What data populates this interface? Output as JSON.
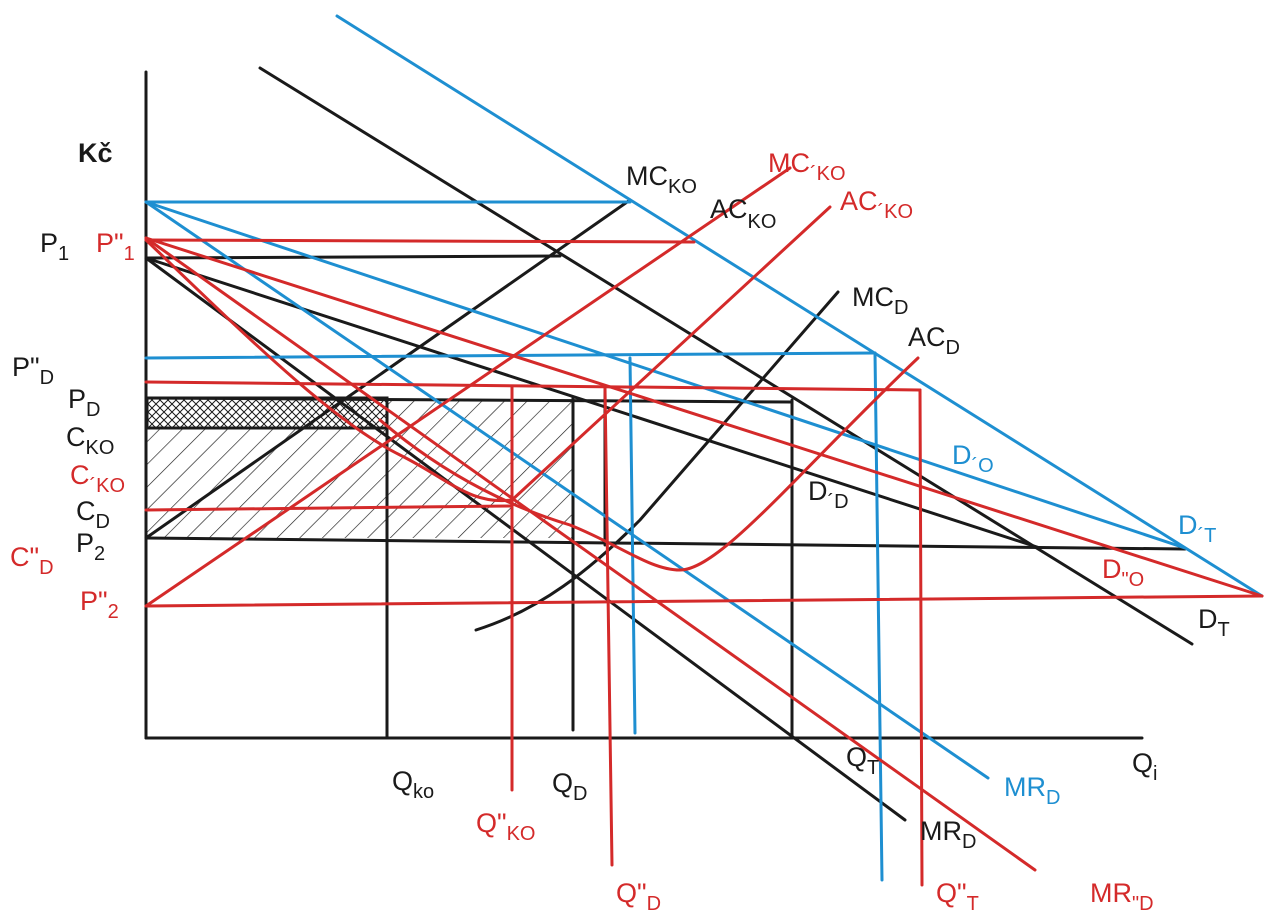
{
  "colors": {
    "black": "#1a1a1a",
    "red": "#d42a2a",
    "blue": "#1e8fd1"
  },
  "axes": {
    "y_label": "Kč",
    "x_label": {
      "main": "Q",
      "sub": "i"
    }
  },
  "curves": {
    "mc_ko": {
      "main": "MC",
      "sub": "KO"
    },
    "ac_ko": {
      "main": "AC",
      "sub": "KO"
    },
    "mc_ko_prime": {
      "main": "MC",
      "sub": "´KO"
    },
    "ac_ko_prime": {
      "main": "AC",
      "sub": "´KO"
    },
    "mc_d": {
      "main": "MC",
      "sub": "D"
    },
    "ac_d": {
      "main": "AC",
      "sub": "D"
    },
    "d_o_prime": {
      "main": "D",
      "sub": "´O"
    },
    "d_d_prime": {
      "main": "D",
      "sub": "´D"
    },
    "d_t_prime": {
      "main": "D",
      "sub": "´T"
    },
    "d_o_dprime": {
      "main": "D",
      "sub": "\"O"
    },
    "d_t": {
      "main": "D",
      "sub": "T"
    },
    "mr_d_blue": {
      "main": "MR",
      "sub": "D"
    },
    "mr_d_black": {
      "main": "MR",
      "sub": "D"
    },
    "mr_d_dprime": {
      "main": "MR",
      "sub": "\"D"
    }
  },
  "price_labels": {
    "p1": {
      "main": "P",
      "sub": "1"
    },
    "p1_dprime": {
      "main": "P\"",
      "sub": "1"
    },
    "pd_dprime": {
      "main": "P\"",
      "sub": "D"
    },
    "pd": {
      "main": "P",
      "sub": "D"
    },
    "cko": {
      "main": "C",
      "sub": "KO"
    },
    "cko_prime": {
      "main": "C",
      "sub": "´KO"
    },
    "cd": {
      "main": "C",
      "sub": "D"
    },
    "p2": {
      "main": "P",
      "sub": "2"
    },
    "cd_dprime": {
      "main": "C\"",
      "sub": "D"
    },
    "p2_dprime": {
      "main": "P\"",
      "sub": "2"
    }
  },
  "quantity_labels": {
    "qko": {
      "main": "Q",
      "sub": "ko"
    },
    "qd": {
      "main": "Q",
      "sub": "D"
    },
    "qt": {
      "main": "Q",
      "sub": "T"
    },
    "qko_dprime": {
      "main": "Q\"",
      "sub": "KO"
    },
    "qd_dprime": {
      "main": "Q\"",
      "sub": "D"
    },
    "qt_dprime": {
      "main": "Q\"",
      "sub": "T"
    }
  }
}
